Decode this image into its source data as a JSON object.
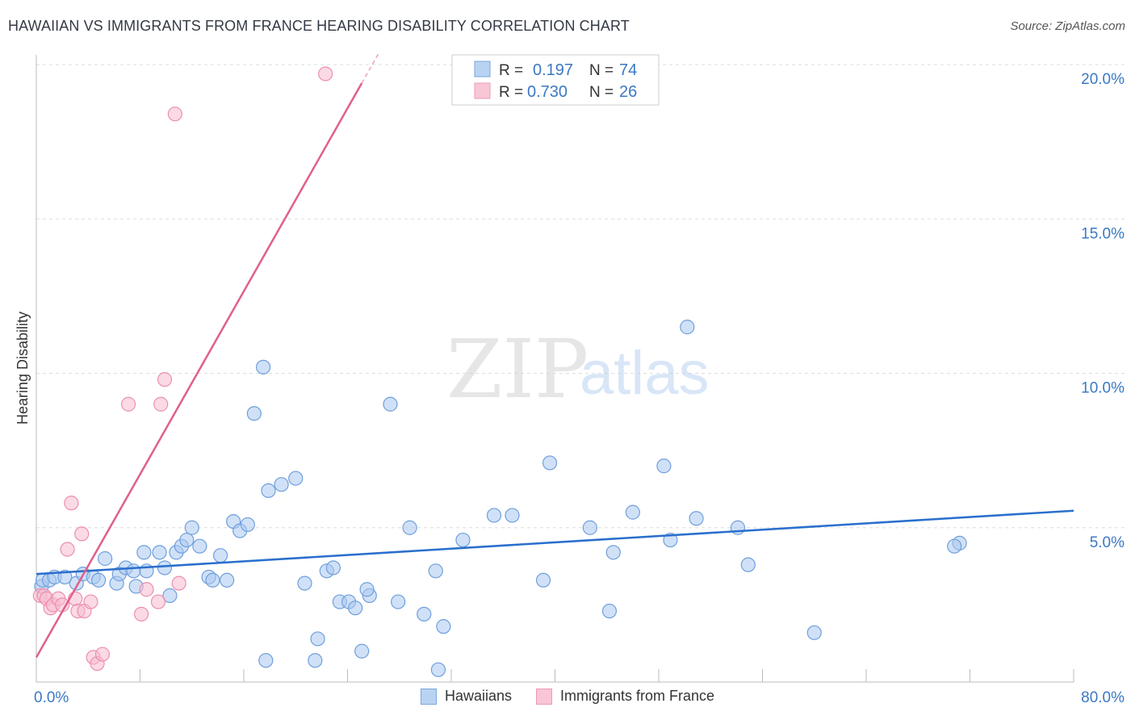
{
  "title": "HAWAIIAN VS IMMIGRANTS FROM FRANCE HEARING DISABILITY CORRELATION CHART",
  "source": "Source: ZipAtlas.com",
  "watermark": {
    "zip": "ZIP",
    "atlas": "atlas"
  },
  "colors": {
    "blue_fill": "#a9c8f0",
    "blue_stroke": "#6f9fdc",
    "blue_line": "#2a6fcc",
    "pink_fill": "#f7bcd0",
    "pink_stroke": "#ec8fae",
    "pink_line": "#e0608b",
    "axis_text": "#3b78c4",
    "grid": "#dddddd"
  },
  "stats": [
    {
      "r_label": "R =",
      "r": "0.197",
      "n_label": "N =",
      "n": "74"
    },
    {
      "r_label": "R =",
      "r": "0.730",
      "n_label": "N =",
      "n": "26"
    }
  ],
  "chart_data": {
    "type": "scatter",
    "title": "HAWAIIAN VS IMMIGRANTS FROM FRANCE HEARING DISABILITY CORRELATION CHART",
    "xlabel": "",
    "ylabel": "Hearing Disability",
    "xlim": [
      0,
      80
    ],
    "ylim": [
      0,
      20.5
    ],
    "x_tick_labels": [
      "0.0%",
      "80.0%"
    ],
    "y_ticks": [
      5,
      10,
      15,
      20
    ],
    "y_tick_labels": [
      "5.0%",
      "10.0%",
      "15.0%",
      "20.0%"
    ],
    "legend_position": "top-center",
    "series": [
      {
        "name": "Hawaiians",
        "color": "blue",
        "trend": [
          [
            0,
            3.5
          ],
          [
            80,
            5.55
          ]
        ],
        "points": [
          [
            0.4,
            3.1
          ],
          [
            0.5,
            3.3
          ],
          [
            1.0,
            3.3
          ],
          [
            1.4,
            3.4
          ],
          [
            2.2,
            3.4
          ],
          [
            3.1,
            3.2
          ],
          [
            3.6,
            3.5
          ],
          [
            4.4,
            3.4
          ],
          [
            4.8,
            3.3
          ],
          [
            5.3,
            4.0
          ],
          [
            6.2,
            3.2
          ],
          [
            6.4,
            3.5
          ],
          [
            6.9,
            3.7
          ],
          [
            7.5,
            3.6
          ],
          [
            7.7,
            3.1
          ],
          [
            8.3,
            4.2
          ],
          [
            8.5,
            3.6
          ],
          [
            9.5,
            4.2
          ],
          [
            9.9,
            3.7
          ],
          [
            10.3,
            2.8
          ],
          [
            10.8,
            4.2
          ],
          [
            11.2,
            4.4
          ],
          [
            11.6,
            4.6
          ],
          [
            12.0,
            5.0
          ],
          [
            12.6,
            4.4
          ],
          [
            13.3,
            3.4
          ],
          [
            13.6,
            3.3
          ],
          [
            14.2,
            4.1
          ],
          [
            14.7,
            3.3
          ],
          [
            15.2,
            5.2
          ],
          [
            15.7,
            4.9
          ],
          [
            16.3,
            5.1
          ],
          [
            16.8,
            8.7
          ],
          [
            17.5,
            10.2
          ],
          [
            17.7,
            0.7
          ],
          [
            17.9,
            6.2
          ],
          [
            18.9,
            6.4
          ],
          [
            20.0,
            6.6
          ],
          [
            20.7,
            3.2
          ],
          [
            21.5,
            0.7
          ],
          [
            21.7,
            1.4
          ],
          [
            22.4,
            3.6
          ],
          [
            22.9,
            3.7
          ],
          [
            23.4,
            2.6
          ],
          [
            24.1,
            2.6
          ],
          [
            24.6,
            2.4
          ],
          [
            25.1,
            1.0
          ],
          [
            25.7,
            2.8
          ],
          [
            27.3,
            9.0
          ],
          [
            27.9,
            2.6
          ],
          [
            28.8,
            5.0
          ],
          [
            29.9,
            2.2
          ],
          [
            30.8,
            3.6
          ],
          [
            31.0,
            0.4
          ],
          [
            31.4,
            1.8
          ],
          [
            32.9,
            4.6
          ],
          [
            35.3,
            5.4
          ],
          [
            36.7,
            5.4
          ],
          [
            39.1,
            3.3
          ],
          [
            39.6,
            7.1
          ],
          [
            42.7,
            5.0
          ],
          [
            44.2,
            2.3
          ],
          [
            44.5,
            4.2
          ],
          [
            46.0,
            5.5
          ],
          [
            48.4,
            7.0
          ],
          [
            48.9,
            4.6
          ],
          [
            50.2,
            11.5
          ],
          [
            50.9,
            5.3
          ],
          [
            54.1,
            5.0
          ],
          [
            54.9,
            3.8
          ],
          [
            60.0,
            1.6
          ],
          [
            71.2,
            4.5
          ],
          [
            70.8,
            4.4
          ],
          [
            25.5,
            3.0
          ]
        ]
      },
      {
        "name": "Immigrants from France",
        "color": "pink",
        "trend": [
          [
            0,
            0.8
          ],
          [
            25.1,
            19.4
          ]
        ],
        "points": [
          [
            0.3,
            2.8
          ],
          [
            0.6,
            2.8
          ],
          [
            0.8,
            2.7
          ],
          [
            1.1,
            2.4
          ],
          [
            1.3,
            2.5
          ],
          [
            1.7,
            2.7
          ],
          [
            2.0,
            2.5
          ],
          [
            2.4,
            4.3
          ],
          [
            2.7,
            5.8
          ],
          [
            3.0,
            2.7
          ],
          [
            3.2,
            2.3
          ],
          [
            3.5,
            4.8
          ],
          [
            3.7,
            2.3
          ],
          [
            4.2,
            2.6
          ],
          [
            4.4,
            0.8
          ],
          [
            4.7,
            0.6
          ],
          [
            5.1,
            0.9
          ],
          [
            7.1,
            9.0
          ],
          [
            8.1,
            2.2
          ],
          [
            8.5,
            3.0
          ],
          [
            9.4,
            2.6
          ],
          [
            9.6,
            9.0
          ],
          [
            9.9,
            9.8
          ],
          [
            10.7,
            18.4
          ],
          [
            11.0,
            3.2
          ],
          [
            22.3,
            19.7
          ]
        ]
      }
    ]
  }
}
